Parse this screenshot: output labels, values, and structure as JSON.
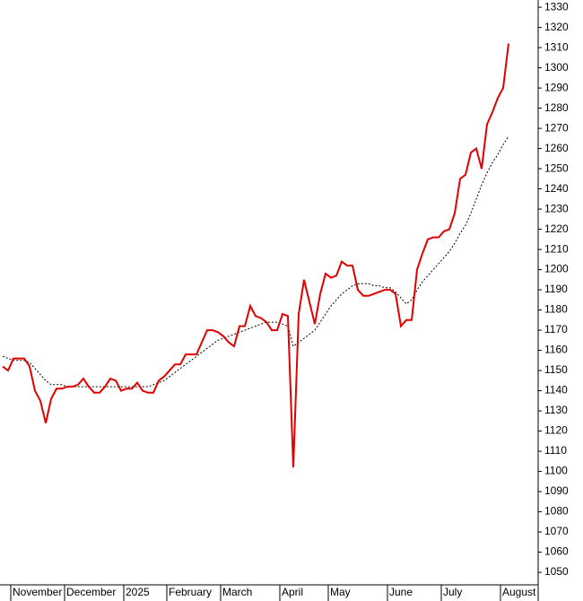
{
  "chart_data": {
    "type": "line",
    "categories": [
      null,
      null,
      "November",
      null,
      null,
      null,
      null,
      null,
      null,
      null,
      null,
      null,
      "December",
      null,
      null,
      null,
      null,
      null,
      null,
      null,
      null,
      null,
      null,
      "2025",
      null,
      null,
      null,
      null,
      null,
      null,
      null,
      "February",
      null,
      null,
      null,
      null,
      null,
      null,
      null,
      null,
      null,
      "March",
      null,
      null,
      null,
      null,
      null,
      null,
      null,
      null,
      null,
      null,
      "April",
      null,
      null,
      null,
      null,
      null,
      null,
      null,
      null,
      "May",
      null,
      null,
      null,
      null,
      null,
      null,
      null,
      null,
      null,
      null,
      "June",
      null,
      null,
      null,
      null,
      null,
      null,
      null,
      null,
      null,
      "July",
      null,
      null,
      null,
      null,
      null,
      null,
      null,
      null,
      null,
      null,
      "August",
      null
    ],
    "series": [
      {
        "color": "#e00000",
        "style": "solid",
        "values": [
          1152,
          1150,
          1156,
          1156,
          1156,
          1152,
          1140,
          1135,
          1124,
          1136,
          1141,
          1141,
          1142,
          1142,
          1143,
          1146,
          1142,
          1139,
          1139,
          1142,
          1146,
          1145,
          1140,
          1141,
          1141,
          1144,
          1140,
          1139,
          1139,
          1145,
          1147,
          1150,
          1153,
          1153,
          1158,
          1158,
          1158,
          1164,
          1170,
          1170,
          1169,
          1167,
          1164,
          1162,
          1172,
          1172,
          1182,
          1177,
          1176,
          1174,
          1170,
          1170,
          1178,
          1177,
          1102,
          1178,
          1195,
          1184,
          1173,
          1188,
          1198,
          1196,
          1197,
          1204,
          1202,
          1202,
          1190,
          1187,
          1187,
          1188,
          1189,
          1190,
          1190,
          1188,
          1172,
          1175,
          1175,
          1200,
          1208,
          1215,
          1216,
          1216,
          1219,
          1220,
          1228,
          1245,
          1247,
          1258,
          1260,
          1250,
          1272,
          1278,
          1285,
          1290,
          1312
        ]
      },
      {
        "color": "#000000",
        "style": "dashed",
        "values": [
          1157,
          1156,
          1155,
          1155,
          1155,
          1154,
          1151,
          1148,
          1145,
          1143,
          1143,
          1143,
          1142,
          1142,
          1142,
          1142,
          1142,
          1142,
          1142,
          1142,
          1142,
          1142,
          1142,
          1142,
          1142,
          1142,
          1142,
          1142,
          1143,
          1144,
          1145,
          1147,
          1149,
          1151,
          1153,
          1155,
          1157,
          1159,
          1161,
          1163,
          1165,
          1166,
          1167,
          1168,
          1169,
          1170,
          1171,
          1172,
          1173,
          1174,
          1174,
          1174,
          1173,
          1172,
          1162,
          1164,
          1166,
          1168,
          1170,
          1174,
          1178,
          1182,
          1185,
          1188,
          1190,
          1192,
          1193,
          1193,
          1193,
          1192,
          1192,
          1191,
          1191,
          1189,
          1186,
          1183,
          1185,
          1190,
          1194,
          1197,
          1200,
          1203,
          1206,
          1209,
          1213,
          1218,
          1222,
          1228,
          1235,
          1242,
          1248,
          1253,
          1257,
          1262,
          1266
        ]
      }
    ],
    "ylim": [
      1043.8,
      1333.6
    ],
    "yticks": [
      1050,
      1060,
      1070,
      1080,
      1090,
      1100,
      1110,
      1120,
      1130,
      1140,
      1150,
      1160,
      1170,
      1180,
      1190,
      1200,
      1210,
      1220,
      1230,
      1240,
      1250,
      1260,
      1270,
      1280,
      1290,
      1300,
      1310,
      1320,
      1330
    ],
    "y_axis_side": "right"
  }
}
